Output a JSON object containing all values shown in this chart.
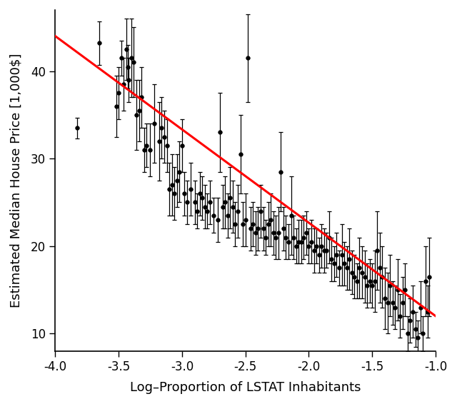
{
  "title": "",
  "xlabel": "Log–Proportion of LSTAT Inhabitants",
  "ylabel": "Estimated Median House Price [1,000$]",
  "xlim": [
    -4.0,
    -1.0
  ],
  "ylim": [
    8,
    47
  ],
  "xticks": [
    -4.0,
    -3.5,
    -3.0,
    -2.5,
    -2.0,
    -1.5,
    -1.0
  ],
  "yticks": [
    10,
    20,
    30,
    40
  ],
  "line_color": "red",
  "point_color": "black",
  "point_size": 4,
  "line_width": 2.2,
  "line_slope": -10.67,
  "line_intercept": 1.33,
  "figsize": [
    6.4,
    5.66
  ],
  "dpi": 100,
  "points": [
    [
      -3.83,
      33.5,
      1.2
    ],
    [
      -3.65,
      43.2,
      2.5
    ],
    [
      -3.52,
      36.0,
      3.5
    ],
    [
      -3.5,
      37.5,
      3.0
    ],
    [
      -3.48,
      41.5,
      2.0
    ],
    [
      -3.46,
      38.5,
      3.0
    ],
    [
      -3.44,
      42.5,
      3.5
    ],
    [
      -3.43,
      40.5,
      2.5
    ],
    [
      -3.42,
      39.0,
      2.5
    ],
    [
      -3.4,
      41.5,
      4.5
    ],
    [
      -3.38,
      41.0,
      4.0
    ],
    [
      -3.36,
      35.0,
      4.0
    ],
    [
      -3.34,
      35.5,
      3.5
    ],
    [
      -3.32,
      37.0,
      3.5
    ],
    [
      -3.3,
      31.0,
      2.5
    ],
    [
      -3.28,
      31.5,
      2.5
    ],
    [
      -3.25,
      31.0,
      3.0
    ],
    [
      -3.22,
      34.0,
      4.5
    ],
    [
      -3.18,
      32.0,
      4.5
    ],
    [
      -3.16,
      33.5,
      3.5
    ],
    [
      -3.14,
      32.5,
      3.0
    ],
    [
      -3.12,
      31.5,
      3.0
    ],
    [
      -3.1,
      26.5,
      3.0
    ],
    [
      -3.08,
      27.0,
      3.5
    ],
    [
      -3.06,
      26.0,
      3.0
    ],
    [
      -3.04,
      27.5,
      3.0
    ],
    [
      -3.02,
      28.5,
      3.5
    ],
    [
      -3.0,
      31.5,
      3.0
    ],
    [
      -2.98,
      26.0,
      2.5
    ],
    [
      -2.96,
      25.0,
      2.5
    ],
    [
      -2.93,
      26.5,
      3.0
    ],
    [
      -2.9,
      25.0,
      2.5
    ],
    [
      -2.88,
      24.0,
      2.0
    ],
    [
      -2.86,
      26.0,
      2.5
    ],
    [
      -2.84,
      25.5,
      2.5
    ],
    [
      -2.82,
      24.5,
      2.5
    ],
    [
      -2.8,
      24.0,
      2.0
    ],
    [
      -2.78,
      25.0,
      2.5
    ],
    [
      -2.75,
      23.5,
      2.0
    ],
    [
      -2.72,
      23.0,
      2.5
    ],
    [
      -2.7,
      33.0,
      4.5
    ],
    [
      -2.68,
      24.5,
      2.5
    ],
    [
      -2.66,
      25.0,
      3.0
    ],
    [
      -2.64,
      23.5,
      2.5
    ],
    [
      -2.62,
      25.5,
      3.5
    ],
    [
      -2.6,
      24.5,
      3.0
    ],
    [
      -2.58,
      22.5,
      2.5
    ],
    [
      -2.56,
      24.0,
      3.0
    ],
    [
      -2.54,
      30.5,
      4.5
    ],
    [
      -2.52,
      22.5,
      2.5
    ],
    [
      -2.5,
      23.0,
      3.0
    ],
    [
      -2.48,
      41.5,
      5.0
    ],
    [
      -2.46,
      22.0,
      2.5
    ],
    [
      -2.44,
      22.5,
      2.5
    ],
    [
      -2.42,
      21.5,
      2.5
    ],
    [
      -2.4,
      22.0,
      2.5
    ],
    [
      -2.38,
      24.0,
      3.0
    ],
    [
      -2.36,
      22.0,
      2.5
    ],
    [
      -2.34,
      21.0,
      2.0
    ],
    [
      -2.32,
      22.5,
      2.5
    ],
    [
      -2.3,
      23.0,
      3.0
    ],
    [
      -2.28,
      21.5,
      2.5
    ],
    [
      -2.26,
      21.0,
      2.5
    ],
    [
      -2.24,
      21.5,
      3.0
    ],
    [
      -2.22,
      28.5,
      4.5
    ],
    [
      -2.2,
      22.0,
      2.5
    ],
    [
      -2.18,
      21.0,
      2.5
    ],
    [
      -2.16,
      20.5,
      2.0
    ],
    [
      -2.14,
      23.5,
      4.5
    ],
    [
      -2.12,
      21.0,
      2.5
    ],
    [
      -2.1,
      20.0,
      2.0
    ],
    [
      -2.08,
      20.5,
      2.5
    ],
    [
      -2.06,
      20.5,
      2.5
    ],
    [
      -2.04,
      21.0,
      2.5
    ],
    [
      -2.02,
      21.5,
      2.5
    ],
    [
      -2.0,
      20.0,
      2.0
    ],
    [
      -1.98,
      20.5,
      2.5
    ],
    [
      -1.96,
      19.5,
      2.5
    ],
    [
      -1.94,
      20.0,
      2.0
    ],
    [
      -1.92,
      19.0,
      2.0
    ],
    [
      -1.9,
      20.0,
      2.5
    ],
    [
      -1.88,
      19.5,
      2.5
    ],
    [
      -1.86,
      19.5,
      2.0
    ],
    [
      -1.84,
      21.0,
      3.0
    ],
    [
      -1.82,
      18.5,
      2.5
    ],
    [
      -1.8,
      18.0,
      2.0
    ],
    [
      -1.78,
      19.0,
      2.5
    ],
    [
      -1.76,
      17.5,
      2.0
    ],
    [
      -1.74,
      19.0,
      3.5
    ],
    [
      -1.72,
      18.0,
      2.5
    ],
    [
      -1.7,
      17.5,
      2.5
    ],
    [
      -1.68,
      18.5,
      3.5
    ],
    [
      -1.66,
      17.0,
      2.5
    ],
    [
      -1.64,
      16.5,
      2.5
    ],
    [
      -1.62,
      16.0,
      2.0
    ],
    [
      -1.6,
      17.5,
      3.5
    ],
    [
      -1.58,
      17.0,
      3.0
    ],
    [
      -1.56,
      16.5,
      3.0
    ],
    [
      -1.54,
      15.5,
      2.5
    ],
    [
      -1.52,
      16.0,
      2.5
    ],
    [
      -1.5,
      15.5,
      2.5
    ],
    [
      -1.48,
      16.0,
      3.5
    ],
    [
      -1.46,
      19.5,
      4.5
    ],
    [
      -1.44,
      17.5,
      4.0
    ],
    [
      -1.42,
      16.5,
      3.5
    ],
    [
      -1.4,
      14.0,
      3.5
    ],
    [
      -1.38,
      13.5,
      3.5
    ],
    [
      -1.36,
      15.5,
      3.5
    ],
    [
      -1.34,
      13.5,
      2.5
    ],
    [
      -1.32,
      13.0,
      2.5
    ],
    [
      -1.3,
      15.0,
      3.5
    ],
    [
      -1.28,
      12.0,
      2.5
    ],
    [
      -1.26,
      13.5,
      3.0
    ],
    [
      -1.24,
      15.0,
      3.0
    ],
    [
      -1.22,
      10.0,
      2.0
    ],
    [
      -1.2,
      11.5,
      2.5
    ],
    [
      -1.18,
      12.5,
      3.0
    ],
    [
      -1.16,
      10.5,
      2.0
    ],
    [
      -1.14,
      9.5,
      2.0
    ],
    [
      -1.12,
      13.0,
      3.0
    ],
    [
      -1.1,
      10.0,
      2.0
    ],
    [
      -1.08,
      16.0,
      4.0
    ],
    [
      -1.06,
      12.5,
      3.0
    ],
    [
      -1.05,
      16.5,
      4.5
    ]
  ]
}
